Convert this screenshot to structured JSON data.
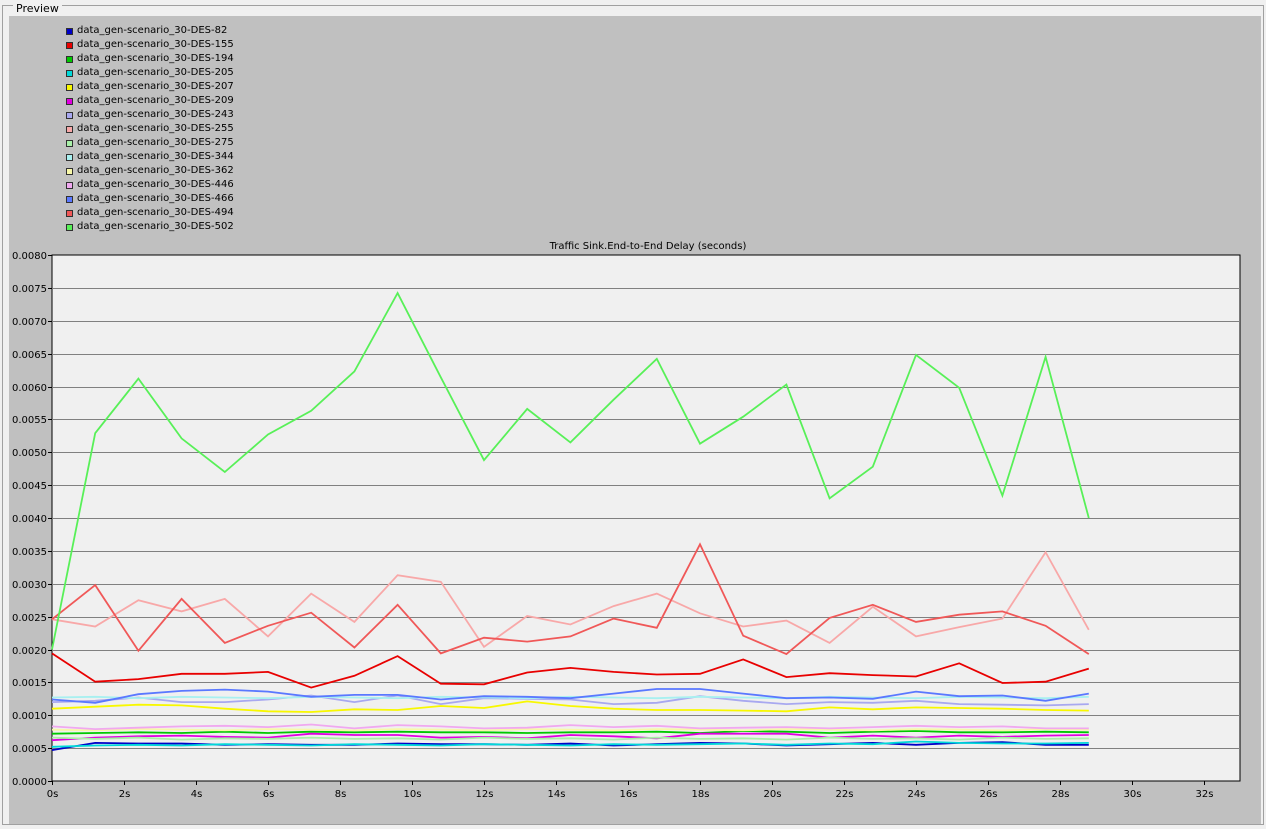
{
  "panel": {
    "label": "Preview"
  },
  "chart_data": {
    "type": "line",
    "title": "Traffic Sink.End-to-End Delay (seconds)",
    "xlabel": "",
    "ylabel": "",
    "xlim": [
      0,
      33
    ],
    "ylim": [
      0,
      0.008
    ],
    "grid": true,
    "legend_position": "top-left",
    "x_ticks": [
      0,
      2,
      4,
      6,
      8,
      10,
      12,
      14,
      16,
      18,
      20,
      22,
      24,
      26,
      28,
      30,
      32
    ],
    "x_tick_labels": [
      "0s",
      "2s",
      "4s",
      "6s",
      "8s",
      "10s",
      "12s",
      "14s",
      "16s",
      "18s",
      "20s",
      "22s",
      "24s",
      "26s",
      "28s",
      "30s",
      "32s"
    ],
    "y_ticks": [
      0,
      0.0005,
      0.001,
      0.0015,
      0.002,
      0.0025,
      0.003,
      0.0035,
      0.004,
      0.0045,
      0.005,
      0.0055,
      0.006,
      0.0065,
      0.007,
      0.0075,
      0.008
    ],
    "y_tick_labels": [
      "0.0000",
      "0.0005",
      "0.0010",
      "0.0015",
      "0.0020",
      "0.0025",
      "0.0030",
      "0.0035",
      "0.0040",
      "0.0045",
      "0.0050",
      "0.0055",
      "0.0060",
      "0.0065",
      "0.0070",
      "0.0075",
      "0.0080"
    ],
    "x": [
      0,
      1.2,
      2.4,
      3.6,
      4.8,
      6.0,
      7.2,
      8.4,
      9.6,
      10.8,
      12.0,
      13.2,
      14.4,
      15.6,
      16.8,
      18.0,
      19.2,
      20.4,
      21.6,
      22.8,
      24.0,
      25.2,
      26.4,
      27.6,
      28.8
    ],
    "series": [
      {
        "name": "data_gen-scenario_30-DES-82",
        "color": "#0000c8",
        "values": [
          0.00047,
          0.00058,
          0.00057,
          0.00057,
          0.00055,
          0.00056,
          0.00055,
          0.00055,
          0.00057,
          0.00056,
          0.00056,
          0.00055,
          0.00057,
          0.00054,
          0.00056,
          0.00058,
          0.00057,
          0.00054,
          0.00056,
          0.00058,
          0.00055,
          0.00058,
          0.00059,
          0.00055,
          0.00055
        ]
      },
      {
        "name": "data_gen-scenario_30-DES-155",
        "color": "#e80000",
        "values": [
          0.00194,
          0.00151,
          0.00155,
          0.00163,
          0.00163,
          0.00166,
          0.00142,
          0.0016,
          0.0019,
          0.00148,
          0.00147,
          0.00165,
          0.00172,
          0.00166,
          0.00162,
          0.00163,
          0.00185,
          0.00158,
          0.00164,
          0.00161,
          0.00159,
          0.00179,
          0.00149,
          0.00151,
          0.00171
        ]
      },
      {
        "name": "data_gen-scenario_30-DES-194",
        "color": "#00c800",
        "values": [
          0.00072,
          0.00073,
          0.00074,
          0.00073,
          0.00075,
          0.00073,
          0.00075,
          0.00074,
          0.00075,
          0.00074,
          0.00074,
          0.00073,
          0.00074,
          0.00074,
          0.00075,
          0.00073,
          0.00076,
          0.00075,
          0.00073,
          0.00075,
          0.00076,
          0.00074,
          0.00074,
          0.00075,
          0.00074
        ]
      },
      {
        "name": "data_gen-scenario_30-DES-205",
        "color": "#00d8d8",
        "values": [
          0.00052,
          0.00054,
          0.00055,
          0.00054,
          0.00056,
          0.00055,
          0.00054,
          0.00056,
          0.00055,
          0.00054,
          0.00056,
          0.00055,
          0.00054,
          0.00056,
          0.00055,
          0.00056,
          0.00057,
          0.00055,
          0.00057,
          0.00056,
          0.0006,
          0.00058,
          0.00057,
          0.00057,
          0.00058
        ]
      },
      {
        "name": "data_gen-scenario_30-DES-207",
        "color": "#f8f800",
        "values": [
          0.0011,
          0.00113,
          0.00116,
          0.00115,
          0.0011,
          0.00106,
          0.00105,
          0.00109,
          0.00108,
          0.00114,
          0.00111,
          0.00121,
          0.00114,
          0.0011,
          0.00108,
          0.00108,
          0.00107,
          0.00106,
          0.00112,
          0.00109,
          0.00112,
          0.00111,
          0.0011,
          0.00108,
          0.00107
        ]
      },
      {
        "name": "data_gen-scenario_30-DES-209",
        "color": "#e000e0",
        "values": [
          0.00062,
          0.00066,
          0.00068,
          0.00069,
          0.00067,
          0.00066,
          0.00072,
          0.0007,
          0.0007,
          0.00066,
          0.00067,
          0.00065,
          0.0007,
          0.00068,
          0.00065,
          0.00072,
          0.00072,
          0.00072,
          0.00066,
          0.00069,
          0.00066,
          0.00069,
          0.00067,
          0.00069,
          0.0007
        ]
      },
      {
        "name": "data_gen-scenario_30-DES-243",
        "color": "#a8a8f0",
        "values": [
          0.0012,
          0.00122,
          0.00127,
          0.0012,
          0.0012,
          0.00124,
          0.0013,
          0.0012,
          0.0013,
          0.00117,
          0.00126,
          0.00125,
          0.00124,
          0.00117,
          0.00119,
          0.00129,
          0.00122,
          0.00117,
          0.0012,
          0.00119,
          0.00122,
          0.00117,
          0.00116,
          0.00115,
          0.00117
        ]
      },
      {
        "name": "data_gen-scenario_30-DES-255",
        "color": "#f8a8a8",
        "values": [
          0.00246,
          0.00235,
          0.00275,
          0.00258,
          0.00277,
          0.0022,
          0.00285,
          0.00242,
          0.00313,
          0.00303,
          0.00204,
          0.00251,
          0.00238,
          0.00266,
          0.00285,
          0.00255,
          0.00235,
          0.00244,
          0.0021,
          0.00265,
          0.0022,
          0.00234,
          0.00247,
          0.00348,
          0.0023
        ]
      },
      {
        "name": "data_gen-scenario_30-DES-275",
        "color": "#a8f0a8",
        "values": [
          0.00066,
          0.00064,
          0.00066,
          0.00063,
          0.00065,
          0.00064,
          0.00066,
          0.00064,
          0.00065,
          0.00063,
          0.00066,
          0.00064,
          0.00065,
          0.00063,
          0.00066,
          0.00064,
          0.00065,
          0.00063,
          0.00066,
          0.00064,
          0.00065,
          0.00063,
          0.00066,
          0.00064,
          0.00065
        ]
      },
      {
        "name": "data_gen-scenario_30-DES-344",
        "color": "#a8f0f0",
        "values": [
          0.00127,
          0.00128,
          0.00126,
          0.00128,
          0.00127,
          0.00126,
          0.00128,
          0.00127,
          0.00126,
          0.00128,
          0.00127,
          0.00126,
          0.00128,
          0.00127,
          0.00126,
          0.00128,
          0.00127,
          0.00126,
          0.00128,
          0.00127,
          0.00126,
          0.00128,
          0.00127,
          0.00126,
          0.00128
        ]
      },
      {
        "name": "data_gen-scenario_30-DES-362",
        "color": "#f8f8a8",
        "values": [
          0.00078,
          0.00077,
          0.00079,
          0.00078,
          0.00077,
          0.00079,
          0.00078,
          0.00077,
          0.00079,
          0.00078,
          0.00077,
          0.00079,
          0.00078,
          0.00077,
          0.00079,
          0.00078,
          0.00077,
          0.00079,
          0.00078,
          0.00077,
          0.00079,
          0.00078,
          0.00077,
          0.00079,
          0.00078
        ]
      },
      {
        "name": "data_gen-scenario_30-DES-446",
        "color": "#f0a8f0",
        "values": [
          0.00083,
          0.00079,
          0.00081,
          0.00083,
          0.00084,
          0.00082,
          0.00086,
          0.0008,
          0.00085,
          0.00083,
          0.0008,
          0.00081,
          0.00085,
          0.00082,
          0.00084,
          0.0008,
          0.00081,
          0.00082,
          0.0008,
          0.00082,
          0.00084,
          0.00082,
          0.00083,
          0.0008,
          0.0008
        ]
      },
      {
        "name": "data_gen-scenario_30-DES-466",
        "color": "#5a78ff",
        "values": [
          0.00124,
          0.00119,
          0.00132,
          0.00137,
          0.00139,
          0.00136,
          0.00128,
          0.00131,
          0.00131,
          0.00124,
          0.00129,
          0.00128,
          0.00126,
          0.00133,
          0.0014,
          0.0014,
          0.00133,
          0.00126,
          0.00127,
          0.00125,
          0.00136,
          0.00129,
          0.0013,
          0.00122,
          0.00133
        ]
      },
      {
        "name": "data_gen-scenario_30-DES-494",
        "color": "#f05858",
        "values": [
          0.00246,
          0.00298,
          0.00198,
          0.00277,
          0.0021,
          0.00236,
          0.00256,
          0.00203,
          0.00268,
          0.00194,
          0.00218,
          0.00212,
          0.0022,
          0.00247,
          0.00233,
          0.0036,
          0.00221,
          0.00193,
          0.00248,
          0.00268,
          0.00242,
          0.00253,
          0.00258,
          0.00236,
          0.00193
        ]
      },
      {
        "name": "data_gen-scenario_30-DES-502",
        "color": "#58f058",
        "values": [
          0.002,
          0.00529,
          0.00612,
          0.00521,
          0.0047,
          0.00527,
          0.00563,
          0.00623,
          0.00742,
          0.00614,
          0.00488,
          0.00566,
          0.00515,
          0.0058,
          0.00642,
          0.00513,
          0.00554,
          0.00603,
          0.0043,
          0.00478,
          0.00648,
          0.00598,
          0.00434,
          0.00645,
          0.004
        ]
      }
    ]
  }
}
